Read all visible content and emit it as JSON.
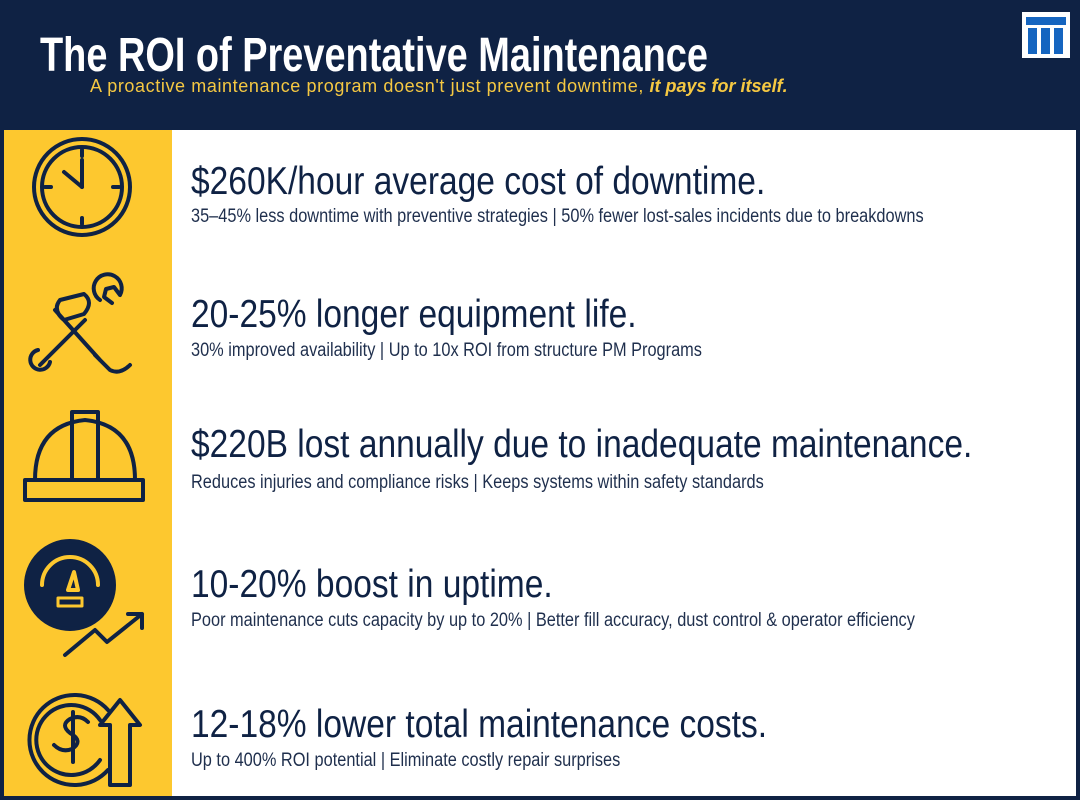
{
  "header": {
    "title": "The ROI of Preventative Maintenance",
    "subtitle_lead": "A proactive maintenance program doesn't just prevent downtime,",
    "subtitle_emphasis": "it pays for itself."
  },
  "items": [
    {
      "headline": "$260K/hour average cost of downtime.",
      "details": "35–45% less downtime with preventive strategies | 50% fewer lost-sales incidents due to breakdowns"
    },
    {
      "headline": "20-25% longer equipment life.",
      "details": "30% improved availability | Up to 10x ROI from structure PM Programs"
    },
    {
      "headline": "$220B lost annually due to inadequate maintenance.",
      "details": "Reduces injuries and compliance risks | Keeps systems within safety standards"
    },
    {
      "headline": "10-20% boost in uptime.",
      "details": "Poor maintenance cuts capacity by up to 20% | Better fill accuracy, dust control & operator efficiency"
    },
    {
      "headline": "12-18% lower total maintenance costs.",
      "details": "Up to 400% ROI potential | Eliminate costly repair surprises"
    }
  ]
}
